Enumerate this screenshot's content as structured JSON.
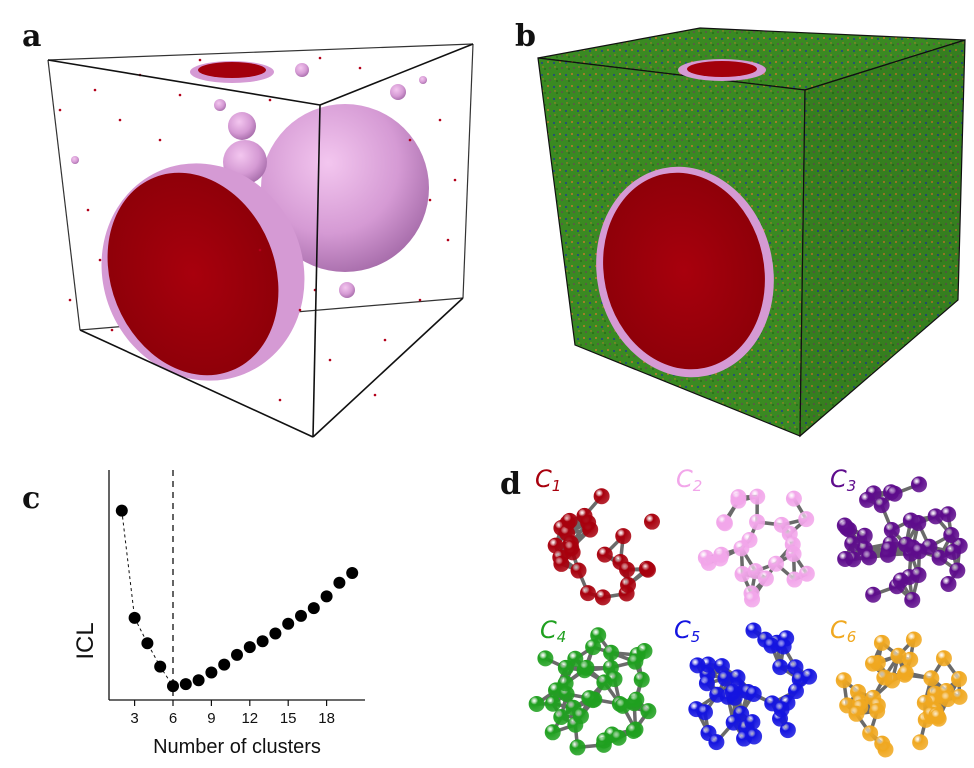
{
  "panels": {
    "a": "a",
    "b": "b",
    "c": "c",
    "d": "d"
  },
  "chart_data": {
    "type": "scatter",
    "title": "",
    "xlabel": "Number of clusters",
    "ylabel": "ICL",
    "x_ticks": [
      3,
      6,
      9,
      12,
      15,
      18
    ],
    "xlim": [
      1,
      21
    ],
    "y_ticks": [],
    "y_values_unlabeled": true,
    "dashed_vertical_line_at_x": 6,
    "grid": false,
    "points": [
      {
        "x": 2,
        "y": 0.92
      },
      {
        "x": 3,
        "y": 0.37
      },
      {
        "x": 4,
        "y": 0.24
      },
      {
        "x": 5,
        "y": 0.12
      },
      {
        "x": 6,
        "y": 0.02
      },
      {
        "x": 7,
        "y": 0.03
      },
      {
        "x": 8,
        "y": 0.05
      },
      {
        "x": 9,
        "y": 0.09
      },
      {
        "x": 10,
        "y": 0.13
      },
      {
        "x": 11,
        "y": 0.18
      },
      {
        "x": 12,
        "y": 0.22
      },
      {
        "x": 13,
        "y": 0.25
      },
      {
        "x": 14,
        "y": 0.29
      },
      {
        "x": 15,
        "y": 0.34
      },
      {
        "x": 16,
        "y": 0.38
      },
      {
        "x": 17,
        "y": 0.42
      },
      {
        "x": 18,
        "y": 0.48
      },
      {
        "x": 19,
        "y": 0.55
      },
      {
        "x": 20,
        "y": 0.6
      }
    ],
    "dashed_connector_x_range": [
      2,
      6
    ]
  },
  "clusters": [
    {
      "name": "C",
      "sub": "1",
      "color": "#a8000d"
    },
    {
      "name": "C",
      "sub": "2",
      "color": "#f2a6ea"
    },
    {
      "name": "C",
      "sub": "3",
      "color": "#5e0c8c"
    },
    {
      "name": "C",
      "sub": "4",
      "color": "#1fa01f"
    },
    {
      "name": "C",
      "sub": "5",
      "color": "#1414e0"
    },
    {
      "name": "C",
      "sub": "6",
      "color": "#f0a820"
    }
  ],
  "colors": {
    "crystal_red": "#a3000c",
    "pink_shell": "#d99ad6",
    "liquid_green": "#3a8a22",
    "box_edge": "#111111",
    "bond_gray": "#6a6a6a"
  }
}
